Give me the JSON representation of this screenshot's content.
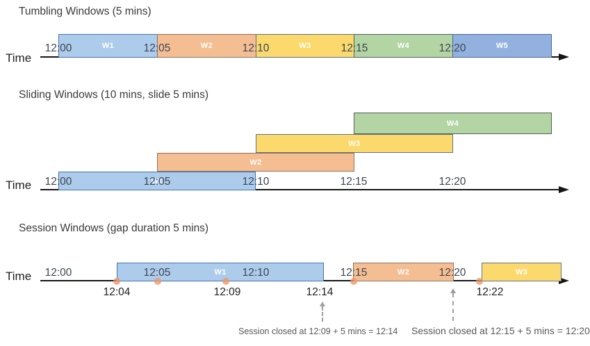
{
  "colors": {
    "blue": {
      "fill": "#ADCBEA",
      "border": "#4273B0"
    },
    "orange": {
      "fill": "#F5BD92",
      "border": "#8C7460"
    },
    "yellow": {
      "fill": "#FCD96D",
      "border": "#5E7280"
    },
    "green": {
      "fill": "#B3D4A3",
      "border": "#50615A"
    },
    "periwinkle": {
      "fill": "#93B1DE",
      "border": "#44679F"
    }
  },
  "sections": [
    {
      "title": "Tumbling Windows (5 mins)",
      "time_label": "Time",
      "ticks": [
        "12:00",
        "12:05",
        "12:10",
        "12:15",
        "12:20"
      ],
      "windows": [
        {
          "label": "W1",
          "color": "blue"
        },
        {
          "label": "W2",
          "color": "orange"
        },
        {
          "label": "W3",
          "color": "yellow"
        },
        {
          "label": "W4",
          "color": "green"
        },
        {
          "label": "W5",
          "color": "periwinkle"
        }
      ]
    },
    {
      "title": "Sliding Windows (10 mins, slide 5 mins)",
      "time_label": "Time",
      "ticks": [
        "12:00",
        "12:05",
        "12:10",
        "12:15",
        "12:20"
      ],
      "windows": [
        {
          "label": "W1",
          "color": "blue"
        },
        {
          "label": "W2",
          "color": "orange"
        },
        {
          "label": "W3",
          "color": "yellow"
        },
        {
          "label": "W4",
          "color": "green"
        }
      ]
    },
    {
      "title": "Session Windows (gap duration 5 mins)",
      "time_label": "Time",
      "ticks": [
        "12:00",
        "12:05",
        "12:10",
        "12:15",
        "12:20"
      ],
      "ticks_below": [
        "12:04",
        "12:09",
        "12:14",
        "12:22"
      ],
      "event_dot_count": 5,
      "windows": [
        {
          "label": "W1",
          "color": "blue"
        },
        {
          "label": "W2",
          "color": "orange"
        },
        {
          "label": "W3",
          "color": "yellow"
        }
      ],
      "annotations": [
        "Session closed at 12:09 + 5 mins = 12:14",
        "Session closed at 12:15 + 5 mins = 12:20"
      ]
    }
  ]
}
